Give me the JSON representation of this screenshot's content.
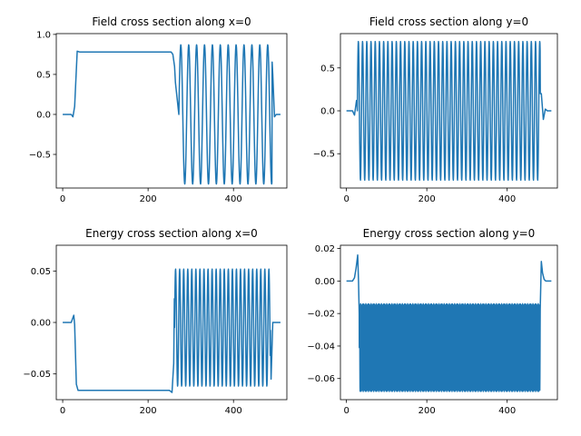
{
  "chart_data": [
    {
      "type": "line",
      "title": "Field cross section along x=0",
      "xlabel": "",
      "ylabel": "",
      "xlim": [
        -15,
        525
      ],
      "ylim": [
        -0.92,
        1.01
      ],
      "xticks": [
        0,
        200,
        400
      ],
      "xtick_labels": [
        "0",
        "200",
        "400"
      ],
      "yticks": [
        -0.5,
        0.0,
        0.5,
        1.0
      ],
      "ytick_labels": [
        "−0.5",
        "0.0",
        "0.5",
        "1.0"
      ],
      "color": "#1f77b4",
      "series": [
        {
          "x": [
            0,
            20,
            24,
            28,
            34,
            40,
            250,
            254,
            258,
            262,
            264,
            268,
            272,
            276,
            280,
            484,
            488,
            492,
            496,
            500,
            510
          ],
          "y": [
            0.0,
            0.0,
            -0.03,
            0.1,
            0.79,
            0.78,
            0.78,
            0.78,
            0.75,
            0.6,
            0.4,
            0.2,
            0.0,
            0.5,
            0.86,
            0.86,
            0.91,
            0.5,
            -0.03,
            0.0,
            0.0
          ],
          "oscillation": {
            "from": 272,
            "to": 490,
            "period": 18.5,
            "amplitude": 0.87,
            "spike_max": 0.92
          }
        }
      ]
    },
    {
      "type": "line",
      "title": "Field cross section along y=0",
      "xlabel": "",
      "ylabel": "",
      "xlim": [
        -15,
        525
      ],
      "ylim": [
        -0.9,
        0.9
      ],
      "xticks": [
        0,
        200,
        400
      ],
      "xtick_labels": [
        "0",
        "200",
        "400"
      ],
      "yticks": [
        -0.5,
        0.0,
        0.5
      ],
      "ytick_labels": [
        "−0.5",
        "0.0",
        "0.5"
      ],
      "color": "#1f77b4",
      "series": [
        {
          "x": [
            0,
            15,
            20,
            25,
            485,
            490,
            495,
            500,
            510
          ],
          "y": [
            0.0,
            0.0,
            -0.05,
            0.12,
            0.2,
            -0.1,
            0.02,
            0.0,
            0.0
          ],
          "oscillation": {
            "from": 27,
            "to": 482,
            "period": 10.5,
            "amplitude": 0.81,
            "spike_max": 0.83
          }
        }
      ]
    },
    {
      "type": "line",
      "title": "Energy cross section along x=0",
      "xlabel": "",
      "ylabel": "",
      "xlim": [
        -15,
        525
      ],
      "ylim": [
        -0.075,
        0.075
      ],
      "xticks": [
        0,
        200,
        400
      ],
      "xtick_labels": [
        "0",
        "200",
        "400"
      ],
      "yticks": [
        -0.05,
        0.0,
        0.05
      ],
      "ytick_labels": [
        "−0.05",
        "0.00",
        "0.05"
      ],
      "color": "#1f77b4",
      "series": [
        {
          "x": [
            0,
            20,
            26,
            28,
            32,
            36,
            40,
            250,
            256,
            260,
            262,
            264,
            476,
            480,
            484,
            488,
            492,
            500,
            510
          ],
          "y": [
            0.0,
            0.0,
            0.007,
            -0.002,
            -0.06,
            -0.066,
            -0.066,
            -0.066,
            -0.068,
            -0.04,
            0.044,
            0.01,
            0.01,
            -0.07,
            0.071,
            -0.055,
            0.0,
            0.0,
            0.0
          ],
          "oscillation": {
            "from": 262,
            "to": 486,
            "period": 9.5,
            "center": -0.005,
            "amplitude": 0.057
          }
        }
      ]
    },
    {
      "type": "line",
      "title": "Energy cross section along y=0",
      "xlabel": "",
      "ylabel": "",
      "xlim": [
        -15,
        525
      ],
      "ylim": [
        -0.073,
        0.022
      ],
      "xticks": [
        0,
        200,
        400
      ],
      "xtick_labels": [
        "0",
        "200",
        "400"
      ],
      "yticks": [
        -0.06,
        -0.04,
        -0.02,
        0.0,
        0.02
      ],
      "ytick_labels": [
        "−0.06",
        "−0.04",
        "−0.02",
        "0.00",
        "0.02"
      ],
      "color": "#1f77b4",
      "series": [
        {
          "x": [
            0,
            15,
            20,
            24,
            28,
            30,
            32,
            482,
            485,
            488,
            492,
            496,
            500,
            510
          ],
          "y": [
            0.0,
            0.0,
            0.002,
            0.008,
            0.016,
            0.0,
            -0.023,
            -0.02,
            0.012,
            0.005,
            0.001,
            0.0,
            0.0,
            0.0
          ],
          "oscillation": {
            "from": 32,
            "to": 482,
            "period": 2.6,
            "center": -0.041,
            "amplitude": 0.027
          }
        }
      ]
    }
  ]
}
